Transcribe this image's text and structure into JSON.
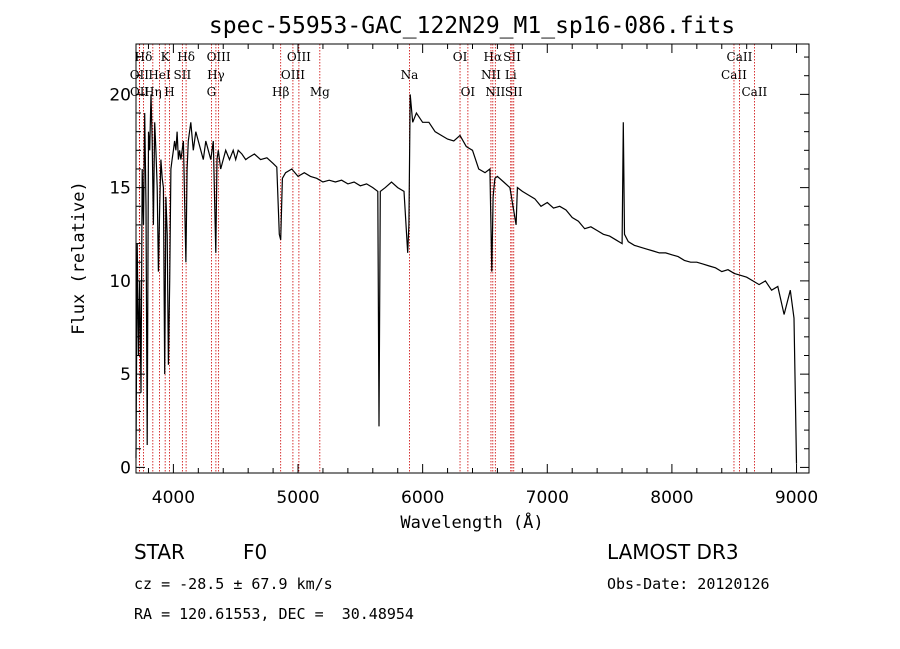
{
  "chart_data": {
    "type": "line",
    "title": "spec-55953-GAC_122N29_M1_sp16-086.fits",
    "xlabel": "Wavelength (Å)",
    "ylabel": "Flux (relative)",
    "xlim": [
      3700,
      9100
    ],
    "ylim": [
      -0.3,
      22.7
    ],
    "xticks": [
      4000,
      5000,
      6000,
      7000,
      8000,
      9000
    ],
    "yticks": [
      0,
      5,
      10,
      15,
      20
    ],
    "line_color": "#000000",
    "marker_color": "#cc0000",
    "spectrum": [
      [
        3700,
        0.5
      ],
      [
        3710,
        12.0
      ],
      [
        3720,
        6.0
      ],
      [
        3730,
        10.0
      ],
      [
        3740,
        4.0
      ],
      [
        3750,
        16.0
      ],
      [
        3760,
        13.0
      ],
      [
        3770,
        19.0
      ],
      [
        3780,
        14.0
      ],
      [
        3790,
        1.2
      ],
      [
        3800,
        18.0
      ],
      [
        3810,
        17.0
      ],
      [
        3820,
        20.0
      ],
      [
        3830,
        17.5
      ],
      [
        3840,
        13.0
      ],
      [
        3850,
        18.5
      ],
      [
        3860,
        17.0
      ],
      [
        3870,
        15.0
      ],
      [
        3880,
        10.5
      ],
      [
        3890,
        14.0
      ],
      [
        3900,
        16.5
      ],
      [
        3910,
        15.5
      ],
      [
        3920,
        15.0
      ],
      [
        3930,
        5.0
      ],
      [
        3940,
        14.5
      ],
      [
        3950,
        12.5
      ],
      [
        3960,
        5.5
      ],
      [
        3970,
        10.0
      ],
      [
        3980,
        16.0
      ],
      [
        3990,
        16.5
      ],
      [
        4000,
        17.0
      ],
      [
        4010,
        17.5
      ],
      [
        4020,
        17.0
      ],
      [
        4030,
        18.0
      ],
      [
        4040,
        16.5
      ],
      [
        4050,
        17.0
      ],
      [
        4060,
        16.5
      ],
      [
        4080,
        17.5
      ],
      [
        4100,
        11.0
      ],
      [
        4110,
        16.0
      ],
      [
        4120,
        17.5
      ],
      [
        4140,
        18.5
      ],
      [
        4160,
        17.0
      ],
      [
        4180,
        18.0
      ],
      [
        4200,
        17.5
      ],
      [
        4220,
        17.0
      ],
      [
        4240,
        16.5
      ],
      [
        4260,
        17.5
      ],
      [
        4280,
        17.0
      ],
      [
        4300,
        16.5
      ],
      [
        4320,
        17.5
      ],
      [
        4340,
        11.5
      ],
      [
        4350,
        16.5
      ],
      [
        4360,
        17.0
      ],
      [
        4380,
        16.0
      ],
      [
        4400,
        16.5
      ],
      [
        4420,
        17.0
      ],
      [
        4450,
        16.5
      ],
      [
        4480,
        17.0
      ],
      [
        4500,
        16.5
      ],
      [
        4520,
        17.0
      ],
      [
        4550,
        16.8
      ],
      [
        4580,
        16.5
      ],
      [
        4600,
        16.6
      ],
      [
        4650,
        16.8
      ],
      [
        4700,
        16.5
      ],
      [
        4750,
        16.6
      ],
      [
        4800,
        16.3
      ],
      [
        4830,
        16.1
      ],
      [
        4850,
        12.5
      ],
      [
        4861,
        12.2
      ],
      [
        4875,
        15.5
      ],
      [
        4900,
        15.8
      ],
      [
        4950,
        16.0
      ],
      [
        5000,
        15.6
      ],
      [
        5050,
        15.8
      ],
      [
        5100,
        15.6
      ],
      [
        5150,
        15.5
      ],
      [
        5200,
        15.3
      ],
      [
        5250,
        15.4
      ],
      [
        5300,
        15.3
      ],
      [
        5350,
        15.4
      ],
      [
        5400,
        15.2
      ],
      [
        5450,
        15.3
      ],
      [
        5500,
        15.1
      ],
      [
        5550,
        15.2
      ],
      [
        5600,
        15.0
      ],
      [
        5640,
        14.8
      ],
      [
        5650,
        2.2
      ],
      [
        5660,
        14.8
      ],
      [
        5700,
        15.0
      ],
      [
        5750,
        15.3
      ],
      [
        5800,
        15.0
      ],
      [
        5850,
        14.8
      ],
      [
        5880,
        11.5
      ],
      [
        5890,
        13.0
      ],
      [
        5900,
        20.0
      ],
      [
        5920,
        18.5
      ],
      [
        5950,
        19.0
      ],
      [
        6000,
        18.5
      ],
      [
        6050,
        18.5
      ],
      [
        6100,
        18.0
      ],
      [
        6150,
        17.8
      ],
      [
        6200,
        17.6
      ],
      [
        6250,
        17.5
      ],
      [
        6300,
        17.8
      ],
      [
        6350,
        17.2
      ],
      [
        6400,
        17.0
      ],
      [
        6450,
        16.0
      ],
      [
        6500,
        15.8
      ],
      [
        6540,
        16.0
      ],
      [
        6555,
        10.5
      ],
      [
        6565,
        14.5
      ],
      [
        6580,
        15.5
      ],
      [
        6600,
        15.6
      ],
      [
        6650,
        15.3
      ],
      [
        6700,
        15.0
      ],
      [
        6750,
        13.0
      ],
      [
        6760,
        15.0
      ],
      [
        6800,
        14.8
      ],
      [
        6850,
        14.6
      ],
      [
        6900,
        14.4
      ],
      [
        6950,
        14.0
      ],
      [
        7000,
        14.2
      ],
      [
        7050,
        13.9
      ],
      [
        7100,
        14.0
      ],
      [
        7150,
        13.8
      ],
      [
        7200,
        13.4
      ],
      [
        7250,
        13.2
      ],
      [
        7300,
        12.8
      ],
      [
        7350,
        12.9
      ],
      [
        7400,
        12.7
      ],
      [
        7450,
        12.5
      ],
      [
        7500,
        12.4
      ],
      [
        7550,
        12.2
      ],
      [
        7600,
        12.0
      ],
      [
        7610,
        18.5
      ],
      [
        7620,
        12.5
      ],
      [
        7650,
        12.1
      ],
      [
        7700,
        11.9
      ],
      [
        7750,
        11.8
      ],
      [
        7800,
        11.7
      ],
      [
        7850,
        11.6
      ],
      [
        7900,
        11.5
      ],
      [
        7950,
        11.5
      ],
      [
        8000,
        11.4
      ],
      [
        8050,
        11.3
      ],
      [
        8100,
        11.1
      ],
      [
        8150,
        11.0
      ],
      [
        8200,
        11.0
      ],
      [
        8250,
        10.9
      ],
      [
        8300,
        10.8
      ],
      [
        8350,
        10.7
      ],
      [
        8400,
        10.5
      ],
      [
        8450,
        10.6
      ],
      [
        8500,
        10.4
      ],
      [
        8550,
        10.3
      ],
      [
        8600,
        10.2
      ],
      [
        8650,
        10.0
      ],
      [
        8700,
        9.8
      ],
      [
        8750,
        10.0
      ],
      [
        8800,
        9.5
      ],
      [
        8850,
        9.7
      ],
      [
        8900,
        8.2
      ],
      [
        8950,
        9.5
      ],
      [
        8980,
        8.0
      ],
      [
        9000,
        0.2
      ]
    ],
    "markers": [
      {
        "label": "Hδ",
        "wavelength": 3760,
        "row": 1
      },
      {
        "label": "OII",
        "wavelength": 3727,
        "row": 2
      },
      {
        "label": "OII",
        "wavelength": 3729,
        "row": 3
      },
      {
        "label": "Hη",
        "wavelength": 3835,
        "row": 3
      },
      {
        "label": "HeI",
        "wavelength": 3889,
        "row": 2
      },
      {
        "label": "K",
        "wavelength": 3934,
        "row": 1
      },
      {
        "label": "H",
        "wavelength": 3969,
        "row": 3
      },
      {
        "label": "SII",
        "wavelength": 4072,
        "row": 2
      },
      {
        "label": "Hδ",
        "wavelength": 4102,
        "row": 1
      },
      {
        "label": "OIII",
        "wavelength": 4363,
        "row": 1
      },
      {
        "label": "Hγ",
        "wavelength": 4341,
        "row": 2
      },
      {
        "label": "G",
        "wavelength": 4305,
        "row": 3
      },
      {
        "label": "OIII",
        "wavelength": 5007,
        "row": 1
      },
      {
        "label": "OIII",
        "wavelength": 4959,
        "row": 2
      },
      {
        "label": "Hβ",
        "wavelength": 4861,
        "row": 3
      },
      {
        "label": "Mg",
        "wavelength": 5175,
        "row": 3
      },
      {
        "label": "Na",
        "wavelength": 5894,
        "row": 2
      },
      {
        "label": "OI",
        "wavelength": 6300,
        "row": 1
      },
      {
        "label": "OI",
        "wavelength": 6363,
        "row": 3
      },
      {
        "label": "Hα",
        "wavelength": 6563,
        "row": 1
      },
      {
        "label": "NII",
        "wavelength": 6548,
        "row": 2
      },
      {
        "label": "NII",
        "wavelength": 6583,
        "row": 3
      },
      {
        "label": "SII",
        "wavelength": 6717,
        "row": 1
      },
      {
        "label": "Li",
        "wavelength": 6707,
        "row": 2
      },
      {
        "label": "SII",
        "wavelength": 6731,
        "row": 3
      },
      {
        "label": "CaII",
        "wavelength": 8498,
        "row": 2
      },
      {
        "label": "CaII",
        "wavelength": 8542,
        "row": 1
      },
      {
        "label": "CaII",
        "wavelength": 8662,
        "row": 3
      }
    ]
  },
  "info": {
    "class": "STAR",
    "subclass": "F0",
    "survey": "LAMOST DR3",
    "cz": "cz = -28.5 ± 67.9 km/s",
    "obs_date": "Obs-Date: 20120126",
    "radec": "RA = 120.61553, DEC =  30.48954"
  }
}
